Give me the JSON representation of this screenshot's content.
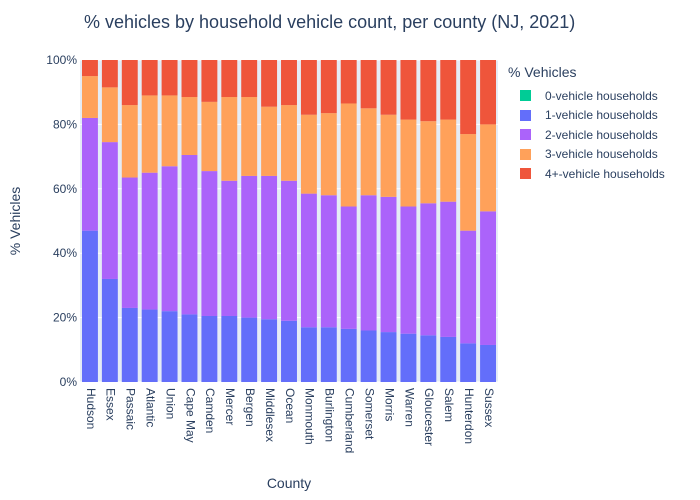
{
  "chart_data": {
    "type": "bar",
    "barmode": "stack",
    "title": "% vehicles by household vehicle count, per county (NJ, 2021)",
    "xlabel": "County",
    "ylabel": "% Vehicles",
    "ylim": [
      0,
      100
    ],
    "yticks": [
      "0%",
      "20%",
      "40%",
      "60%",
      "80%",
      "100%"
    ],
    "grid": true,
    "legend_title": "% Vehicles",
    "legend_position": "right",
    "categories": [
      "Hudson",
      "Essex",
      "Passaic",
      "Atlantic",
      "Union",
      "Cape May",
      "Camden",
      "Mercer",
      "Bergen",
      "Middlesex",
      "Ocean",
      "Monmouth",
      "Burlington",
      "Cumberland",
      "Somerset",
      "Morris",
      "Warren",
      "Gloucester",
      "Salem",
      "Hunterdon",
      "Sussex"
    ],
    "series": [
      {
        "name": "0-vehicle households",
        "color": "#00cc96",
        "values": [
          0,
          0,
          0,
          0,
          0,
          0,
          0,
          0,
          0,
          0,
          0,
          0,
          0,
          0,
          0,
          0,
          0,
          0,
          0,
          0,
          0
        ]
      },
      {
        "name": "1-vehicle households",
        "color": "#636efa",
        "values": [
          47,
          32,
          23,
          22.5,
          22,
          21,
          20.5,
          20.5,
          20,
          19.5,
          19,
          17,
          17,
          16.5,
          16,
          15.5,
          15,
          14.5,
          14,
          12,
          11.5
        ]
      },
      {
        "name": "2-vehicle households",
        "color": "#ab63fa",
        "values": [
          35,
          42.5,
          40.5,
          42.5,
          45,
          49.5,
          45,
          42,
          44,
          44.5,
          43.5,
          41.5,
          41,
          38,
          42,
          42,
          39.5,
          41,
          42,
          35,
          41.5
        ]
      },
      {
        "name": "3-vehicle households",
        "color": "#ffa15a",
        "values": [
          13,
          17,
          22.5,
          24,
          22,
          18,
          21.5,
          26,
          24.5,
          21.5,
          23.5,
          24.5,
          25.5,
          32,
          27,
          25.5,
          27,
          25.5,
          25.5,
          30,
          27
        ]
      },
      {
        "name": "4+-vehicle households",
        "color": "#ef553b",
        "values": [
          5,
          8.5,
          14,
          11,
          11,
          11.5,
          13,
          11.5,
          11.5,
          14.5,
          14,
          17,
          16.5,
          13.5,
          15,
          17,
          18.5,
          19,
          18.5,
          23,
          20
        ]
      }
    ]
  }
}
